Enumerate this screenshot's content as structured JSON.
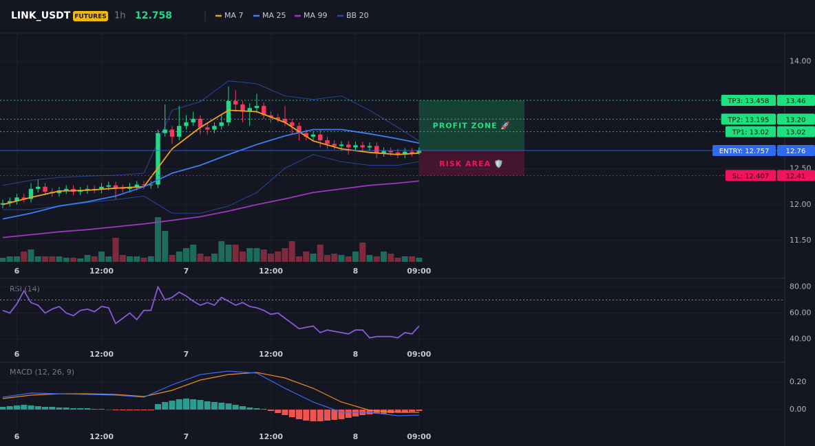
{
  "header": {
    "symbol": "LINK_USDT",
    "badge": "FUTURES",
    "interval": "1h",
    "price": "12.758"
  },
  "chart_data": [
    {
      "type": "candlestick",
      "categories": [
        null,
        null,
        "6",
        null,
        null,
        null,
        null,
        null,
        null,
        null,
        null,
        null,
        null,
        null,
        "12:00",
        null,
        null,
        null,
        null,
        null,
        null,
        null,
        null,
        null,
        null,
        null,
        "7",
        null,
        null,
        null,
        null,
        null,
        null,
        null,
        null,
        null,
        null,
        null,
        "12:00",
        null,
        null,
        null,
        null,
        null,
        null,
        null,
        null,
        null,
        null,
        null,
        "8",
        null,
        null,
        null,
        null,
        null,
        null,
        null,
        null,
        "09:00"
      ],
      "open": [
        12.0,
        12.02,
        12.05,
        12.1,
        12.08,
        12.22,
        12.25,
        12.18,
        12.16,
        12.2,
        12.22,
        12.18,
        12.2,
        12.22,
        12.21,
        12.25,
        12.27,
        12.23,
        12.22,
        12.25,
        12.28,
        12.27,
        12.28,
        13.0,
        13.05,
        12.95,
        13.1,
        13.15,
        13.2,
        13.08,
        13.05,
        13.1,
        13.15,
        13.45,
        13.4,
        13.3,
        13.35,
        13.38,
        13.25,
        13.22,
        13.2,
        13.15,
        13.1,
        13.0,
        12.95,
        12.98,
        12.9,
        12.85,
        12.82,
        12.84,
        12.8,
        12.83,
        12.8,
        12.82,
        12.72,
        12.75,
        12.73,
        12.7,
        12.74,
        12.72
      ],
      "high": [
        12.07,
        12.1,
        12.15,
        12.15,
        12.3,
        12.35,
        12.3,
        12.23,
        12.25,
        12.27,
        12.27,
        12.25,
        12.27,
        12.27,
        12.3,
        12.32,
        12.32,
        12.28,
        12.3,
        12.33,
        12.33,
        12.33,
        13.05,
        13.4,
        13.1,
        13.38,
        13.25,
        13.3,
        13.25,
        13.15,
        13.15,
        13.25,
        13.65,
        13.6,
        13.45,
        13.42,
        13.55,
        13.43,
        13.3,
        13.27,
        13.38,
        13.2,
        13.15,
        13.05,
        13.03,
        13.05,
        12.95,
        12.9,
        12.89,
        12.89,
        12.88,
        12.88,
        12.87,
        12.87,
        12.8,
        12.8,
        12.78,
        12.79,
        12.79,
        12.8
      ],
      "low": [
        11.95,
        11.97,
        12.0,
        12.03,
        12.03,
        12.17,
        12.13,
        12.11,
        12.11,
        12.15,
        12.13,
        12.13,
        12.15,
        12.16,
        12.16,
        12.2,
        12.08,
        12.17,
        12.17,
        12.2,
        12.22,
        12.22,
        12.23,
        12.95,
        12.85,
        12.9,
        13.05,
        13.1,
        12.98,
        12.98,
        13.0,
        13.05,
        13.1,
        13.3,
        13.15,
        13.1,
        13.28,
        13.2,
        13.15,
        13.15,
        13.1,
        12.98,
        12.9,
        12.9,
        12.9,
        12.8,
        12.78,
        12.77,
        12.75,
        12.7,
        12.75,
        12.75,
        12.75,
        12.65,
        12.67,
        12.68,
        12.65,
        12.65,
        12.67,
        12.7
      ],
      "close": [
        12.02,
        12.05,
        12.1,
        12.08,
        12.22,
        12.25,
        12.18,
        12.16,
        12.2,
        12.22,
        12.18,
        12.2,
        12.22,
        12.21,
        12.25,
        12.27,
        12.23,
        12.22,
        12.25,
        12.28,
        12.27,
        12.28,
        13.0,
        13.05,
        12.95,
        13.1,
        13.15,
        13.2,
        13.08,
        13.05,
        13.1,
        13.15,
        13.45,
        13.4,
        13.3,
        13.35,
        13.38,
        13.25,
        13.22,
        13.2,
        13.15,
        13.1,
        13.0,
        12.95,
        12.98,
        12.9,
        12.85,
        12.82,
        12.84,
        12.8,
        12.83,
        12.8,
        12.82,
        12.72,
        12.75,
        12.73,
        12.7,
        12.74,
        12.72,
        12.757
      ],
      "up_color": "#22d68a",
      "down_color": "#f23a5d",
      "volume": [
        6,
        8,
        8,
        15,
        18,
        8,
        8,
        8,
        8,
        6,
        6,
        5,
        10,
        8,
        15,
        8,
        35,
        10,
        8,
        8,
        6,
        8,
        65,
        45,
        10,
        15,
        20,
        25,
        12,
        8,
        12,
        30,
        25,
        25,
        15,
        20,
        20,
        18,
        12,
        15,
        20,
        30,
        8,
        15,
        12,
        25,
        10,
        12,
        10,
        8,
        15,
        28,
        10,
        8,
        15,
        12,
        6,
        8,
        8,
        6
      ],
      "volume_up_color": "#1d6b5c",
      "volume_down_color": "#7c2a3c",
      "line_x": [
        0,
        4,
        8,
        12,
        16,
        20,
        24,
        28,
        32,
        36,
        40,
        44,
        48,
        52,
        56,
        59
      ],
      "lines": [
        {
          "name": "MA 7",
          "color": "#f7a21b",
          "values": [
            12.0,
            12.1,
            12.19,
            12.2,
            12.23,
            12.25,
            12.78,
            13.08,
            13.32,
            13.3,
            13.15,
            12.89,
            12.78,
            12.73,
            12.7,
            12.72
          ]
        },
        {
          "name": "MA 25",
          "color": "#3b7ef6",
          "values": [
            11.8,
            11.88,
            11.98,
            12.04,
            12.12,
            12.25,
            12.44,
            12.55,
            12.7,
            12.84,
            12.96,
            13.05,
            13.05,
            12.99,
            12.92,
            12.86
          ]
        },
        {
          "name": "MA 99",
          "color": "#a035c2",
          "values": [
            11.54,
            11.58,
            11.62,
            11.65,
            11.69,
            11.73,
            11.78,
            11.83,
            11.91,
            12.0,
            12.08,
            12.17,
            12.22,
            12.27,
            12.3,
            12.33
          ]
        }
      ],
      "bands": {
        "name": "BB 20",
        "color": "#2a4aa8",
        "upper": [
          12.27,
          12.34,
          12.38,
          12.4,
          12.41,
          12.44,
          13.32,
          13.44,
          13.73,
          13.69,
          13.52,
          13.47,
          13.52,
          13.32,
          13.08,
          12.89
        ],
        "lower": [
          11.93,
          11.93,
          11.98,
          12.03,
          12.07,
          12.12,
          11.88,
          11.88,
          11.98,
          12.17,
          12.51,
          12.7,
          12.6,
          12.55,
          12.55,
          12.6
        ]
      },
      "ylim": [
        11.2,
        14.4
      ],
      "yticks": [
        {
          "value": 14,
          "label": "14.00"
        },
        {
          "value": 12.5,
          "label": "12.50"
        },
        {
          "value": 12,
          "label": "12.00"
        },
        {
          "value": 11.5,
          "label": "11.50"
        }
      ],
      "grid": true,
      "levels": [
        {
          "label": "TP3: 13.458",
          "value": 13.458,
          "axis_label": "13.46",
          "color": "#1fe07f",
          "style": "dotted"
        },
        {
          "label": "TP2: 13.195",
          "value": 13.195,
          "axis_label": "13.20",
          "color": "#1fe07f",
          "style": "dotted"
        },
        {
          "label": "TP1: 13.02",
          "value": 13.02,
          "axis_label": "13.02",
          "color": "#1fe07f",
          "style": "dotted"
        },
        {
          "label": "ENTRY: 12.757",
          "value": 12.757,
          "axis_label": "12.76",
          "color": "#2f6bf0",
          "style": "solid"
        },
        {
          "label": "SL: 12.407",
          "value": 12.407,
          "axis_label": "12.41",
          "color": "#f0145a",
          "style": "dotted"
        }
      ],
      "zones": [
        {
          "label": "PROFIT ZONE 🚀",
          "from": 13.458,
          "to": 12.757,
          "color": "#1fe07f"
        },
        {
          "label": "RISK AREA 🛡️",
          "from": 12.757,
          "to": 12.407,
          "color": "#f0145a"
        }
      ]
    },
    {
      "type": "line",
      "title": "RSI (14)",
      "categories": [
        null,
        null,
        "6",
        null,
        null,
        null,
        null,
        null,
        null,
        null,
        null,
        null,
        null,
        null,
        "12:00",
        null,
        null,
        null,
        null,
        null,
        null,
        null,
        null,
        null,
        null,
        null,
        "7",
        null,
        null,
        null,
        null,
        null,
        null,
        null,
        null,
        null,
        null,
        null,
        "12:00",
        null,
        null,
        null,
        null,
        null,
        null,
        null,
        null,
        null,
        null,
        null,
        "8",
        null,
        null,
        null,
        null,
        null,
        null,
        null,
        null,
        "09:00"
      ],
      "values": [
        62,
        60,
        67,
        77,
        68,
        66,
        60,
        63,
        65,
        60,
        58,
        62,
        63,
        61,
        65,
        64,
        52,
        56,
        60,
        55,
        62,
        62,
        80,
        70,
        72,
        76,
        73,
        69,
        66,
        68,
        66,
        72,
        69,
        66,
        68,
        65,
        64,
        62,
        59,
        60,
        56,
        52,
        48,
        49,
        50,
        45,
        47,
        46,
        45,
        44,
        47,
        47,
        41,
        42,
        42,
        42,
        41,
        45,
        44,
        50
      ],
      "color": "#8a5ad6",
      "level": 70,
      "ylim": [
        35,
        85
      ],
      "yticks": [
        {
          "value": 80,
          "label": "80.00"
        },
        {
          "value": 60,
          "label": "60.00"
        },
        {
          "value": 40,
          "label": "40.00"
        }
      ]
    },
    {
      "type": "macd",
      "title": "MACD (12, 26, 9)",
      "categories": [
        null,
        null,
        "6",
        null,
        null,
        null,
        null,
        null,
        null,
        null,
        null,
        null,
        null,
        null,
        "12:00",
        null,
        null,
        null,
        null,
        null,
        null,
        null,
        null,
        null,
        null,
        null,
        "7",
        null,
        null,
        null,
        null,
        null,
        null,
        null,
        null,
        null,
        null,
        null,
        "12:00",
        null,
        null,
        null,
        null,
        null,
        null,
        null,
        null,
        null,
        null,
        null,
        "8",
        null,
        null,
        null,
        null,
        null,
        null,
        null,
        null,
        "09:00"
      ],
      "line_x": [
        0,
        4,
        8,
        12,
        16,
        20,
        24,
        28,
        32,
        36,
        40,
        44,
        48,
        52,
        56,
        59
      ],
      "macd": {
        "color": "#3b6cf0",
        "values": [
          0.09,
          0.12,
          0.115,
          0.11,
          0.105,
          0.09,
          0.18,
          0.255,
          0.28,
          0.265,
          0.155,
          0.055,
          -0.02,
          -0.02,
          -0.045,
          -0.04
        ]
      },
      "signal": {
        "color": "#f08a24",
        "values": [
          0.08,
          0.105,
          0.115,
          0.115,
          0.11,
          0.095,
          0.14,
          0.215,
          0.255,
          0.27,
          0.23,
          0.155,
          0.055,
          -0.005,
          -0.02,
          -0.02
        ]
      },
      "histogram": [
        0.02,
        0.025,
        0.03,
        0.035,
        0.03,
        0.025,
        0.02,
        0.02,
        0.015,
        0.015,
        0.01,
        0.01,
        0.01,
        0.005,
        0.005,
        0,
        -0.005,
        -0.005,
        -0.005,
        -0.005,
        -0.005,
        -0.005,
        0.04,
        0.055,
        0.065,
        0.075,
        0.08,
        0.075,
        0.07,
        0.06,
        0.055,
        0.05,
        0.045,
        0.035,
        0.025,
        0.015,
        0.01,
        0.005,
        -0.01,
        -0.025,
        -0.04,
        -0.055,
        -0.07,
        -0.08,
        -0.085,
        -0.085,
        -0.08,
        -0.075,
        -0.07,
        -0.06,
        -0.05,
        -0.04,
        -0.035,
        -0.03,
        -0.03,
        -0.025,
        -0.02,
        -0.02,
        -0.015,
        -0.01
      ],
      "hist_up_color": "#2a9d8f",
      "hist_down_color": "#ef5350",
      "ylim": [
        -0.13,
        0.33
      ],
      "yticks": [
        {
          "value": 0.2,
          "label": "0.20"
        },
        {
          "value": 0,
          "label": "0.00"
        }
      ]
    }
  ]
}
